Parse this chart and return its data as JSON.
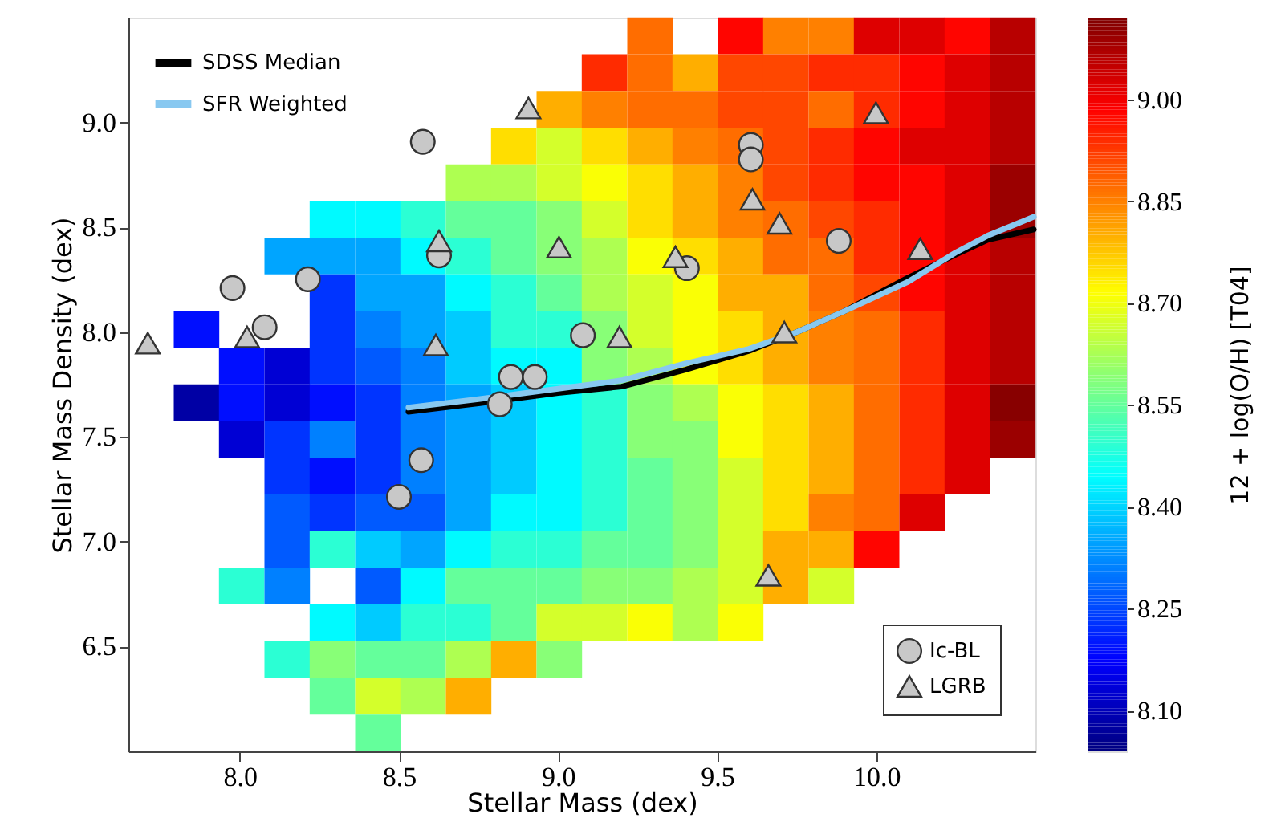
{
  "chart_data": {
    "type": "heatmap",
    "xlabel": "Stellar Mass (dex)",
    "ylabel": "Stellar Mass Density (dex)",
    "clabel": "12 + log(O/H) [T04]",
    "xlim": [
      7.65,
      10.5
    ],
    "ylim": [
      6.0,
      9.5
    ],
    "xticks": [
      {
        "value": 8.0,
        "label": "8.0"
      },
      {
        "value": 8.5,
        "label": "8.5"
      },
      {
        "value": 9.0,
        "label": "9.0"
      },
      {
        "value": 9.5,
        "label": "9.5"
      },
      {
        "value": 10.0,
        "label": "10.0"
      }
    ],
    "yticks": [
      {
        "value": 6.5,
        "label": "6.5"
      },
      {
        "value": 7.0,
        "label": "7.0"
      },
      {
        "value": 7.5,
        "label": "7.5"
      },
      {
        "value": 8.0,
        "label": "8.0"
      },
      {
        "value": 8.5,
        "label": "8.5"
      },
      {
        "value": 9.0,
        "label": "9.0"
      }
    ],
    "clim": [
      8.04,
      9.12
    ],
    "cticks": [
      {
        "value": 8.1,
        "label": "8.10"
      },
      {
        "value": 8.25,
        "label": "8.25"
      },
      {
        "value": 8.4,
        "label": "8.40"
      },
      {
        "value": 8.55,
        "label": "8.55"
      },
      {
        "value": 8.7,
        "label": "8.70"
      },
      {
        "value": 8.85,
        "label": "8.85"
      },
      {
        "value": 9.0,
        "label": "9.00"
      }
    ],
    "x": [
      7.721,
      7.864,
      8.006,
      8.149,
      8.291,
      8.434,
      8.576,
      8.719,
      8.861,
      9.004,
      9.146,
      9.289,
      9.431,
      9.574,
      9.716,
      9.859,
      10.001,
      10.144,
      10.286,
      10.429
    ],
    "y": [
      9.413,
      9.238,
      9.063,
      8.888,
      8.713,
      8.538,
      8.363,
      8.188,
      8.013,
      7.838,
      7.663,
      7.488,
      7.313,
      7.138,
      6.963,
      6.788,
      6.613,
      6.438,
      6.263,
      6.088
    ],
    "cells": [
      [
        null,
        null,
        null,
        null,
        null,
        null,
        null,
        null,
        null,
        null,
        null,
        8.87,
        null,
        8.98,
        8.85,
        8.85,
        9.02,
        9.02,
        8.98,
        9.06
      ],
      [
        null,
        null,
        null,
        null,
        null,
        null,
        null,
        null,
        null,
        null,
        8.94,
        8.87,
        8.8,
        8.91,
        8.91,
        8.94,
        8.94,
        8.98,
        9.02,
        9.06
      ],
      [
        null,
        null,
        null,
        null,
        null,
        null,
        null,
        null,
        null,
        8.8,
        8.85,
        8.87,
        8.87,
        8.91,
        8.91,
        8.87,
        8.94,
        8.98,
        9.02,
        9.06
      ],
      [
        null,
        null,
        null,
        null,
        null,
        null,
        null,
        null,
        8.75,
        8.67,
        8.75,
        8.8,
        8.85,
        8.87,
        8.91,
        8.94,
        8.98,
        9.02,
        9.02,
        9.06
      ],
      [
        null,
        null,
        null,
        null,
        null,
        null,
        null,
        8.63,
        8.63,
        8.67,
        8.71,
        8.75,
        8.8,
        8.85,
        8.91,
        8.94,
        8.98,
        8.98,
        9.02,
        9.09
      ],
      [
        null,
        null,
        null,
        null,
        8.44,
        8.44,
        8.49,
        8.55,
        8.55,
        8.59,
        8.67,
        8.75,
        8.8,
        8.85,
        8.87,
        8.91,
        8.94,
        8.98,
        9.02,
        9.09
      ],
      [
        null,
        null,
        null,
        8.35,
        8.35,
        8.35,
        8.44,
        8.49,
        8.55,
        8.59,
        8.63,
        8.71,
        8.75,
        8.8,
        8.87,
        8.87,
        8.94,
        8.98,
        9.02,
        9.06
      ],
      [
        null,
        null,
        null,
        null,
        8.23,
        8.35,
        8.35,
        8.44,
        8.49,
        8.55,
        8.63,
        8.67,
        8.71,
        8.8,
        8.8,
        8.87,
        8.91,
        8.98,
        9.02,
        9.06
      ],
      [
        null,
        8.19,
        null,
        null,
        8.23,
        8.31,
        8.35,
        8.39,
        8.49,
        8.49,
        8.59,
        8.67,
        8.71,
        8.75,
        8.8,
        8.85,
        8.87,
        8.94,
        9.02,
        9.06
      ],
      [
        null,
        null,
        8.19,
        8.13,
        8.23,
        8.27,
        8.31,
        8.39,
        8.44,
        8.44,
        8.59,
        8.63,
        8.71,
        8.75,
        8.8,
        8.85,
        8.87,
        8.94,
        9.02,
        9.06
      ],
      [
        null,
        8.08,
        8.19,
        8.13,
        8.19,
        8.23,
        8.31,
        8.35,
        8.39,
        8.44,
        8.49,
        8.59,
        8.63,
        8.71,
        8.75,
        8.8,
        8.87,
        8.94,
        9.02,
        9.11
      ],
      [
        null,
        null,
        8.13,
        8.23,
        8.31,
        8.23,
        8.31,
        8.35,
        8.39,
        8.44,
        8.49,
        8.59,
        8.59,
        8.71,
        8.75,
        8.8,
        8.87,
        8.94,
        9.02,
        9.09
      ],
      [
        null,
        null,
        null,
        8.23,
        8.19,
        8.23,
        8.31,
        8.35,
        8.39,
        8.44,
        8.49,
        8.55,
        8.59,
        8.67,
        8.75,
        8.8,
        8.87,
        8.94,
        9.02,
        null
      ],
      [
        null,
        null,
        null,
        8.27,
        8.23,
        8.27,
        8.27,
        8.35,
        8.44,
        8.44,
        8.49,
        8.55,
        8.59,
        8.67,
        8.75,
        8.85,
        8.87,
        9.02,
        null,
        null
      ],
      [
        null,
        null,
        null,
        8.27,
        8.49,
        8.39,
        8.35,
        8.44,
        8.49,
        8.49,
        8.55,
        8.55,
        8.59,
        8.67,
        8.8,
        8.8,
        8.98,
        null,
        null,
        null
      ],
      [
        null,
        null,
        8.49,
        8.31,
        null,
        8.27,
        8.44,
        8.55,
        8.55,
        8.55,
        8.59,
        8.59,
        8.63,
        8.67,
        8.8,
        8.67,
        null,
        null,
        null,
        null
      ],
      [
        null,
        null,
        null,
        null,
        8.44,
        8.39,
        8.49,
        8.49,
        8.55,
        8.67,
        8.67,
        8.71,
        8.63,
        8.71,
        null,
        null,
        null,
        null,
        null,
        null
      ],
      [
        null,
        null,
        null,
        8.49,
        8.59,
        8.55,
        8.55,
        8.63,
        8.8,
        8.59,
        null,
        null,
        null,
        null,
        null,
        null,
        null,
        null,
        null,
        null
      ],
      [
        null,
        null,
        null,
        null,
        8.55,
        8.67,
        8.63,
        8.8,
        null,
        null,
        null,
        null,
        null,
        null,
        null,
        null,
        null,
        null,
        null,
        null
      ],
      [
        null,
        null,
        null,
        null,
        null,
        8.55,
        null,
        null,
        null,
        null,
        null,
        null,
        null,
        null,
        null,
        null,
        null,
        null,
        null,
        null
      ]
    ],
    "legend": "top left",
    "series": [
      {
        "name": "SDSS Median",
        "type": "line",
        "color": "#000000",
        "x": [
          8.53,
          8.75,
          9.0,
          9.2,
          9.4,
          9.6,
          9.75,
          9.9,
          10.1,
          10.25,
          10.35,
          10.495
        ],
        "values": [
          7.62,
          7.66,
          7.71,
          7.74,
          7.82,
          7.91,
          8.0,
          8.1,
          8.26,
          8.37,
          8.44,
          8.49
        ]
      },
      {
        "name": "SFR Weighted",
        "type": "line",
        "color": "#88c8f0",
        "x": [
          8.53,
          8.75,
          9.0,
          9.2,
          9.4,
          9.6,
          9.75,
          9.9,
          10.1,
          10.25,
          10.35,
          10.495
        ],
        "values": [
          7.64,
          7.68,
          7.73,
          7.77,
          7.85,
          7.92,
          8.0,
          8.1,
          8.24,
          8.38,
          8.46,
          8.55
        ]
      },
      {
        "name": "Ic-BL",
        "type": "scatter",
        "marker": "circle",
        "color": "#c8c8c8",
        "x": [
          7.977,
          8.078,
          8.214,
          8.575,
          8.626,
          8.852,
          8.927,
          8.817,
          9.078,
          8.57,
          8.5,
          9.606,
          9.606,
          9.405,
          9.882
        ],
        "values": [
          8.21,
          8.023,
          8.252,
          8.908,
          8.366,
          7.786,
          7.786,
          7.656,
          7.985,
          7.389,
          7.214,
          8.893,
          8.824,
          8.305,
          8.435
        ]
      },
      {
        "name": "LGRB",
        "type": "scatter",
        "marker": "triangle",
        "color": "#c8c8c8",
        "x": [
          7.711,
          8.023,
          8.626,
          9.003,
          8.616,
          8.907,
          9.999,
          9.611,
          9.696,
          9.369,
          10.138,
          9.193,
          9.711,
          9.661
        ],
        "values": [
          7.947,
          7.977,
          8.435,
          8.405,
          7.939,
          9.069,
          9.046,
          8.634,
          8.519,
          8.359,
          8.397,
          7.977,
          8.0,
          6.84
        ]
      }
    ]
  }
}
